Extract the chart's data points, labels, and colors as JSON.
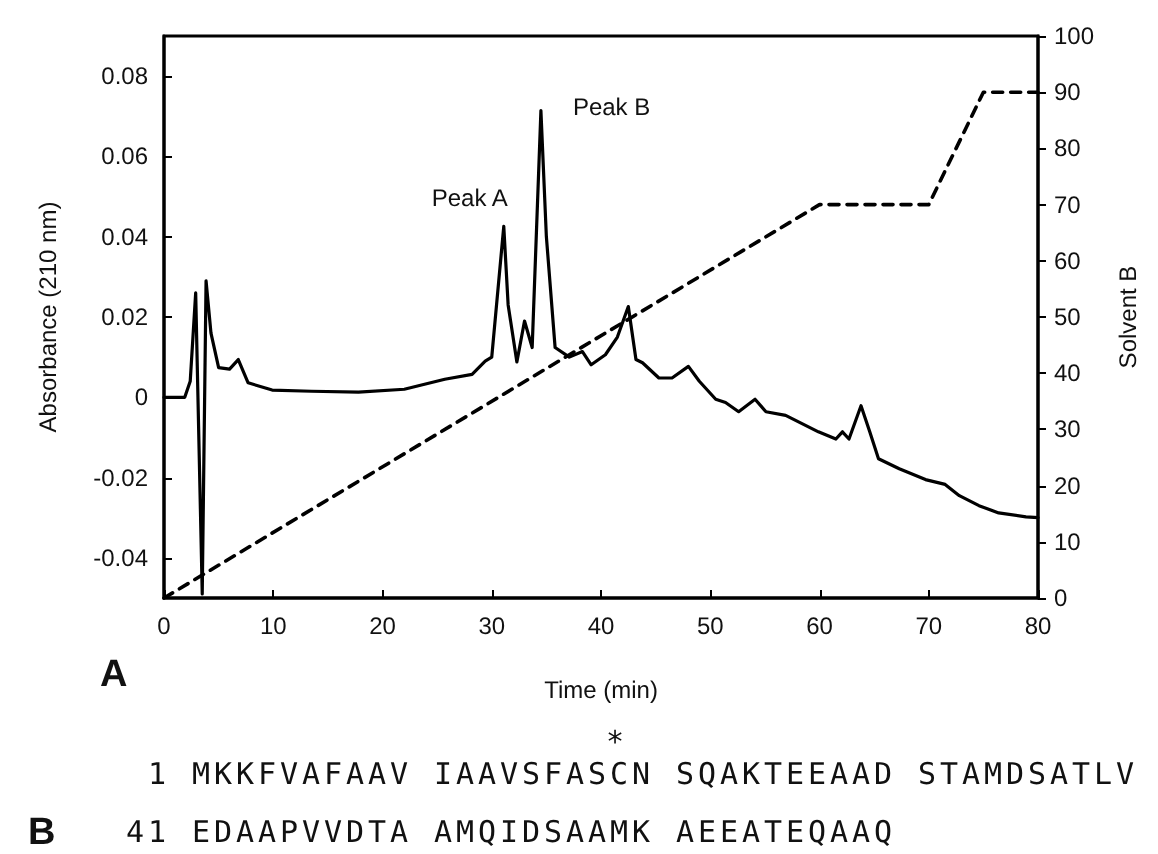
{
  "chart_data": {
    "type": "line",
    "xlabel": "Time (min)",
    "ylabel": "Absorbance (210 nm)",
    "y2label": "Solvent B",
    "xlim": [
      0,
      80
    ],
    "xticks": [
      0,
      10,
      20,
      30,
      40,
      50,
      60,
      70,
      80
    ],
    "ylim": [
      -0.05,
      0.09
    ],
    "yticks": [
      -0.04,
      -0.02,
      0,
      0.02,
      0.04,
      0.06,
      0.08
    ],
    "y2lim": [
      0,
      100
    ],
    "y2ticks": [
      0,
      10,
      20,
      30,
      40,
      50,
      60,
      70,
      80,
      90,
      100
    ],
    "marker": "none",
    "series": [
      {
        "color": "#000000",
        "line_style": "solid",
        "x": [
          0,
          1.9,
          2.4,
          2.9,
          3.5,
          3.85,
          4.3,
          5.0,
          6.0,
          6.8,
          7.7,
          9.9,
          13.5,
          17.8,
          22,
          25.7,
          28.2,
          29.4,
          30,
          31.1,
          31.5,
          32.3,
          33.0,
          33.7,
          34.5,
          35.0,
          35.8,
          37.1,
          38.3,
          39.1,
          40.4,
          41.5,
          42.5,
          43.2,
          43.8,
          45.3,
          46.5,
          48.0,
          49.0,
          50.5,
          51.4,
          52.6,
          54.1,
          55.1,
          56.9,
          59.9,
          61.5,
          62.1,
          62.7,
          63.8,
          64.6,
          65.4,
          67.3,
          69.7,
          71.5,
          72.8,
          74.6,
          76.4,
          78.9,
          80
        ],
        "values": [
          0,
          0,
          0.004,
          0.026,
          -0.049,
          0.029,
          0.016,
          0.0074,
          0.007,
          0.0094,
          0.0036,
          0.0018,
          0.0015,
          0.0013,
          0.002,
          0.0045,
          0.0057,
          0.009,
          0.01,
          0.0426,
          0.023,
          0.0088,
          0.019,
          0.0124,
          0.0714,
          0.04,
          0.0124,
          0.01,
          0.0114,
          0.0081,
          0.0106,
          0.015,
          0.0226,
          0.0094,
          0.0086,
          0.0048,
          0.0048,
          0.0077,
          0.004,
          -0.0005,
          -0.0013,
          -0.0036,
          -0.0005,
          -0.0036,
          -0.0045,
          -0.0086,
          -0.0104,
          -0.0086,
          -0.0104,
          -0.0021,
          -0.0086,
          -0.0153,
          -0.0178,
          -0.0205,
          -0.0217,
          -0.0245,
          -0.027,
          -0.0288,
          -0.0298,
          -0.03
        ]
      },
      {
        "color": "#000000",
        "line_style": "dashed",
        "axis": "y2",
        "x": [
          0,
          60,
          70,
          75,
          80
        ],
        "values": [
          0,
          70,
          70,
          90,
          90
        ]
      }
    ],
    "annotations": [
      {
        "text": "Peak A",
        "x": 31.1,
        "y": 0.0426
      },
      {
        "text": "Peak B",
        "x": 34.5,
        "y": 0.0714
      },
      "A",
      "*",
      "1 MKKFVAFAAV IAAVSFASCN SQAKTEEAAD STAMDSATLV",
      "B",
      "41 EDAAPVVDTA AMQIDSAAMK AEEATEQAAQ"
    ]
  }
}
